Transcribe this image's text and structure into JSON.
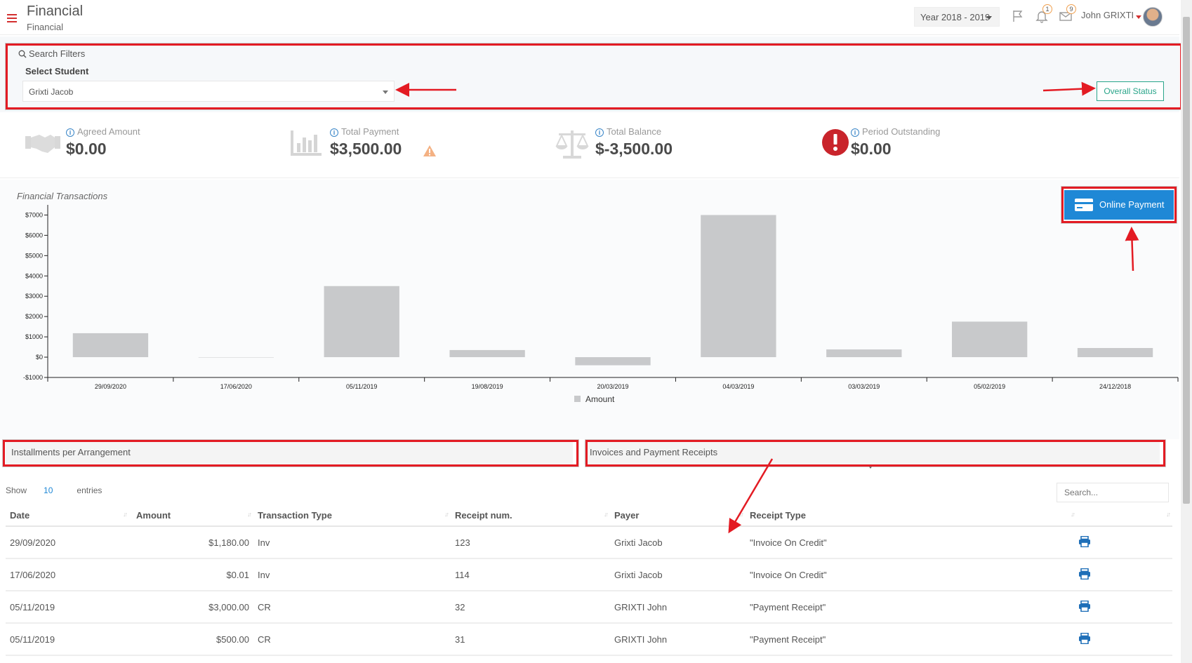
{
  "header": {
    "title": "Financial",
    "subtitle": "Financial",
    "year_select": "Year 2018 - 2019",
    "notifications_badge": "1",
    "messages_badge": "9",
    "user_name": "John GRIXTI"
  },
  "filters": {
    "title": "Search Filters",
    "student_label": "Select Student",
    "student_value": "Grixti Jacob",
    "overall_status_label": "Overall Status"
  },
  "stats": [
    {
      "label": "Agreed Amount",
      "value": "$0.00",
      "icon": "handshake-icon"
    },
    {
      "label": "Total Payment",
      "value": "$3,500.00",
      "icon": "bar-chart-icon",
      "warning": true
    },
    {
      "label": "Total Balance",
      "value": "$-3,500.00",
      "icon": "balance-scale-icon"
    },
    {
      "label": "Period Outstanding",
      "value": "$0.00",
      "icon": "exclamation-circle-icon"
    }
  ],
  "chart_title": "Financial Transactions",
  "online_payment_label": "Online Payment",
  "chart_data": {
    "type": "bar",
    "categories": [
      "29/09/2020",
      "17/06/2020",
      "05/11/2019",
      "19/08/2019",
      "20/03/2019",
      "04/03/2019",
      "03/03/2019",
      "05/02/2019",
      "24/12/2018"
    ],
    "series": [
      {
        "name": "Amount",
        "values": [
          1180,
          0.01,
          3500,
          350,
          -400,
          7000,
          380,
          1750,
          450
        ],
        "color": "#c8c9cb"
      }
    ],
    "ylim": [
      -1000,
      7500
    ],
    "yticks": [
      7000,
      6000,
      5000,
      4000,
      3000,
      2000,
      1000,
      0,
      -1000
    ],
    "ytick_labels": [
      "$7000",
      "$6000",
      "$5000",
      "$4000",
      "$3000",
      "$2000",
      "$1000",
      "$0",
      "-$1000"
    ],
    "legend": "bottom",
    "grid": false
  },
  "sections": {
    "installments_title": "Installments per Arrangement",
    "invoices_title": "Invoices and Payment Receipts"
  },
  "table": {
    "show_label": "Show",
    "length_value": "10",
    "entries_label": "entries",
    "search_placeholder": "Search...",
    "columns": [
      "Date",
      "Amount",
      "Transaction Type",
      "Receipt num.",
      "Payer",
      "Receipt Type"
    ],
    "rows": [
      {
        "date": "29/09/2020",
        "amount": "$1,180.00",
        "type": "Inv",
        "receipt": "123",
        "payer": "Grixti Jacob",
        "receipt_type": "\"Invoice On Credit\""
      },
      {
        "date": "17/06/2020",
        "amount": "$0.01",
        "type": "Inv",
        "receipt": "114",
        "payer": "Grixti Jacob",
        "receipt_type": "\"Invoice On Credit\""
      },
      {
        "date": "05/11/2019",
        "amount": "$3,000.00",
        "type": "CR",
        "receipt": "32",
        "payer": "GRIXTI John",
        "receipt_type": "\"Payment Receipt\""
      },
      {
        "date": "05/11/2019",
        "amount": "$500.00",
        "type": "CR",
        "receipt": "31",
        "payer": "GRIXTI John",
        "receipt_type": "\"Payment Receipt\""
      }
    ]
  }
}
